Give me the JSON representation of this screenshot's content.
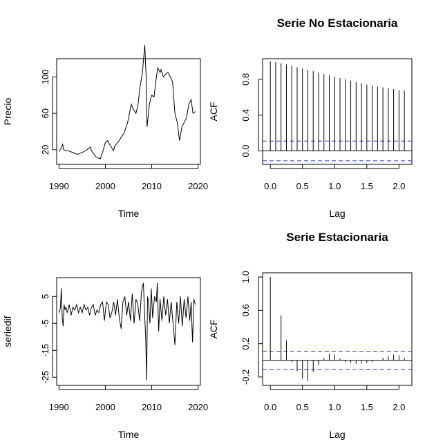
{
  "chart_data": [
    {
      "type": "line",
      "title": "",
      "xlabel": "Time",
      "ylabel": "Precio",
      "xlim": [
        1989.5,
        2020.5
      ],
      "ylim": [
        4,
        120
      ],
      "xticks": [
        1990,
        2000,
        2010,
        2020
      ],
      "xtick_labels": [
        "1990",
        "2000",
        "2010",
        "2020"
      ],
      "yticks": [
        20,
        60,
        100
      ],
      "ytick_labels": [
        "20",
        "60",
        "100"
      ],
      "grid": false,
      "series": [
        {
          "x": [
            1990,
            1990.5,
            1990.8,
            1991.0,
            1991.5,
            1992,
            1993,
            1994,
            1994.5,
            1995,
            1996,
            1996.8,
            1997,
            1998,
            1998.9,
            1999.5,
            2000,
            2000.5,
            2001,
            2001.8,
            2002,
            2003,
            2003.3,
            2004,
            2004.8,
            2005,
            2005.6,
            2006,
            2006.6,
            2007,
            2007.5,
            2008,
            2008.5,
            2008.8,
            2009,
            2009.5,
            2010,
            2010.5,
            2011,
            2011.3,
            2011.8,
            2012,
            2012.5,
            2013,
            2013.5,
            2014,
            2014.5,
            2015,
            2015.5,
            2016,
            2016.5,
            2017,
            2017.5,
            2018,
            2018.5,
            2018.9,
            2019.4
          ],
          "y": [
            18,
            22,
            26,
            20,
            19,
            19,
            17,
            15,
            16,
            17,
            20,
            23,
            19,
            12,
            10,
            19,
            28,
            30,
            25,
            19,
            24,
            30,
            33,
            38,
            50,
            55,
            70,
            65,
            60,
            68,
            90,
            105,
            135,
            100,
            45,
            70,
            80,
            78,
            100,
            110,
            105,
            108,
            100,
            103,
            105,
            100,
            95,
            60,
            50,
            30,
            45,
            50,
            55,
            70,
            75,
            60,
            62
          ]
        }
      ]
    },
    {
      "type": "bar",
      "title": "Serie No Estacionaria",
      "xlabel": "Lag",
      "ylabel": "ACF",
      "xlim": [
        -0.12,
        2.2
      ],
      "ylim": [
        -0.15,
        1.03
      ],
      "xticks": [
        0,
        0.5,
        1,
        1.5,
        2
      ],
      "xtick_labels": [
        "0.0",
        "0.5",
        "1.0",
        "1.5",
        "2.0"
      ],
      "yticks": [
        0,
        0.4,
        0.8
      ],
      "ytick_labels": [
        "0.0",
        "0.4",
        "0.8"
      ],
      "grid": false,
      "confidence_band": [
        -0.11,
        0.11
      ],
      "series": [
        {
          "x": [
            0,
            0.0833,
            0.1667,
            0.25,
            0.3333,
            0.4167,
            0.5,
            0.5833,
            0.6667,
            0.75,
            0.8333,
            0.9167,
            1.0,
            1.0833,
            1.1667,
            1.25,
            1.3333,
            1.4167,
            1.5,
            1.5833,
            1.6667,
            1.75,
            1.8333,
            1.9167,
            2.0,
            2.0833
          ],
          "y": [
            1.0,
            0.99,
            0.98,
            0.965,
            0.95,
            0.935,
            0.92,
            0.905,
            0.89,
            0.875,
            0.86,
            0.845,
            0.83,
            0.815,
            0.8,
            0.785,
            0.77,
            0.755,
            0.74,
            0.73,
            0.72,
            0.71,
            0.7,
            0.69,
            0.68,
            0.675
          ]
        }
      ]
    },
    {
      "type": "line",
      "title": "",
      "xlabel": "Time",
      "ylabel": "seriedif",
      "xlim": [
        1989.5,
        2020.5
      ],
      "ylim": [
        -28,
        12
      ],
      "xticks": [
        1990,
        2000,
        2010,
        2020
      ],
      "xtick_labels": [
        "1990",
        "2000",
        "2010",
        "2020"
      ],
      "yticks": [
        -25,
        -15,
        -5,
        5
      ],
      "ytick_labels": [
        "-25",
        "-15",
        "-5",
        "5"
      ],
      "grid": false,
      "series": [
        {
          "x": [
            1990.1,
            1990.3,
            1990.5,
            1990.7,
            1990.9,
            1991.1,
            1991.3,
            1991.5,
            1991.8,
            1992.2,
            1992.6,
            1993,
            1993.4,
            1993.8,
            1994.2,
            1994.6,
            1995,
            1995.4,
            1995.8,
            1996.2,
            1996.6,
            1997,
            1997.4,
            1997.8,
            1998.2,
            1998.6,
            1999,
            1999.4,
            1999.8,
            2000.2,
            2000.6,
            2001,
            2001.4,
            2001.8,
            2002.2,
            2002.6,
            2003,
            2003.4,
            2003.8,
            2004.2,
            2004.6,
            2005,
            2005.4,
            2005.8,
            2006.2,
            2006.6,
            2007,
            2007.4,
            2007.8,
            2008.2,
            2008.5,
            2008.7,
            2008.9,
            2009.1,
            2009.3,
            2009.6,
            2009.9,
            2010.2,
            2010.6,
            2011,
            2011.2,
            2011.5,
            2011.8,
            2012.2,
            2012.6,
            2013,
            2013.4,
            2013.8,
            2014.2,
            2014.6,
            2015,
            2015.4,
            2015.8,
            2016.2,
            2016.6,
            2017,
            2017.4,
            2017.8,
            2018.2,
            2018.5,
            2018.8,
            2019.1,
            2019.4
          ],
          "y": [
            -1,
            1,
            8,
            -3,
            -6,
            2,
            0,
            1,
            -1,
            2,
            -2,
            1,
            0,
            2,
            -1,
            1,
            -1,
            2,
            0,
            1,
            -2,
            1,
            2,
            -2,
            0,
            -1,
            2,
            3,
            -4,
            3,
            2,
            -3,
            -1,
            3,
            -2,
            4,
            -3,
            -7,
            3,
            5,
            -2,
            3,
            -4,
            6,
            -5,
            4,
            2,
            -4,
            7,
            10,
            -3,
            -10,
            -26,
            5,
            3,
            -5,
            8,
            -3,
            5,
            3,
            10,
            -8,
            4,
            -4,
            5,
            -2,
            4,
            -5,
            3,
            -5,
            -13,
            3,
            -5,
            5,
            -6,
            4,
            -3,
            5,
            -4,
            3,
            -12,
            4,
            2
          ]
        }
      ]
    },
    {
      "type": "bar",
      "title": "Serie Estacionaria",
      "xlabel": "Lag",
      "ylabel": "ACF",
      "xlim": [
        -0.12,
        2.2
      ],
      "ylim": [
        -0.3,
        1.05
      ],
      "xticks": [
        0,
        0.5,
        1,
        1.5,
        2
      ],
      "xtick_labels": [
        "0.0",
        "0.5",
        "1.0",
        "1.5",
        "2.0"
      ],
      "yticks": [
        -0.2,
        0.2,
        0.6,
        1.0
      ],
      "ytick_labels": [
        "-0.2",
        "0.2",
        "0.6",
        "1.0"
      ],
      "grid": false,
      "confidence_band": [
        -0.11,
        0.11
      ],
      "series": [
        {
          "x": [
            0,
            0.0833,
            0.1667,
            0.25,
            0.3333,
            0.4167,
            0.5,
            0.5833,
            0.6667,
            0.75,
            0.8333,
            0.9167,
            1.0,
            1.0833,
            1.1667,
            1.25,
            1.3333,
            1.4167,
            1.5,
            1.5833,
            1.6667,
            1.75,
            1.8333,
            1.9167,
            2.0,
            2.0833
          ],
          "y": [
            1.0,
            0.0,
            0.54,
            0.24,
            -0.02,
            -0.13,
            -0.22,
            -0.25,
            -0.14,
            -0.06,
            0.03,
            0.08,
            0.07,
            0.02,
            -0.02,
            -0.03,
            -0.04,
            -0.04,
            -0.03,
            -0.02,
            0.0,
            0.03,
            0.05,
            0.07,
            0.06,
            0.03
          ]
        }
      ]
    }
  ]
}
